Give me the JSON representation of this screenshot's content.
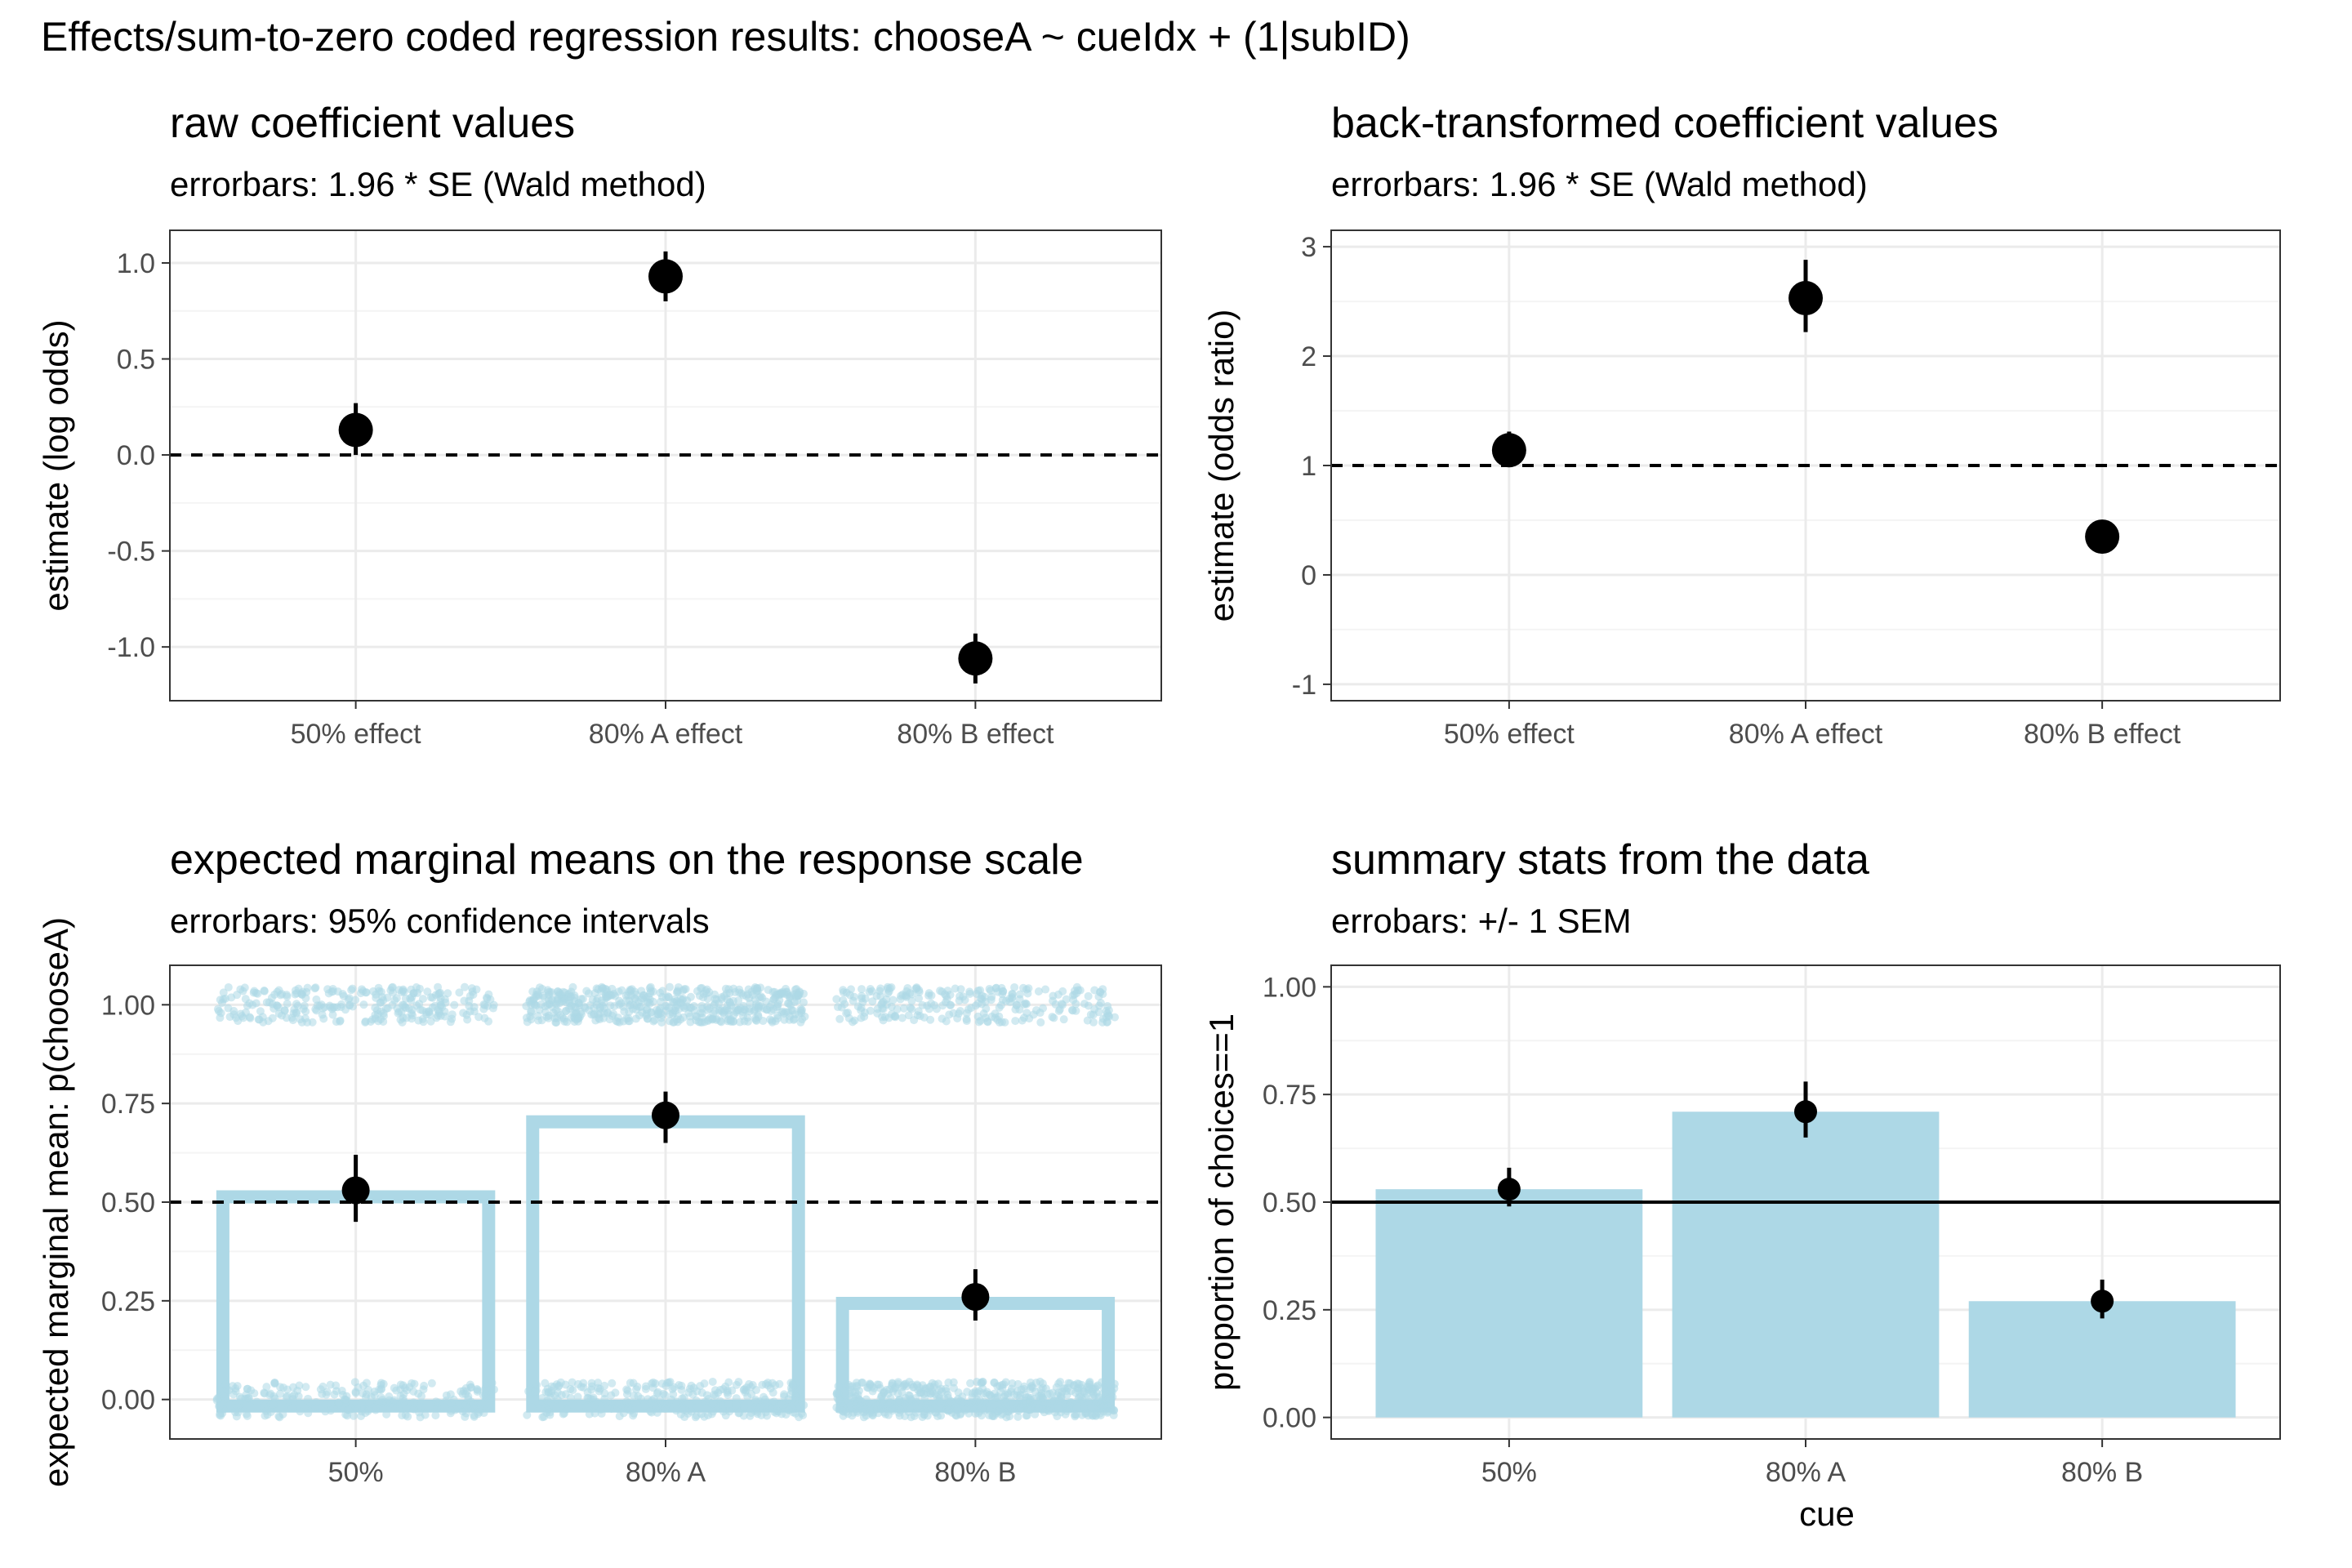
{
  "figure": {
    "title": "Effects/sum-to-zero coded regression results: chooseA ~ cueIdx + (1|subID)"
  },
  "colors": {
    "bar_fill": "#add8e6",
    "point": "#000000",
    "grid_major": "#ebebeb",
    "grid_minor": "#f4f4f4",
    "panel_border": "#333333",
    "tick_text": "#4d4d4d"
  },
  "chart_data": [
    {
      "id": "raw",
      "type": "scatter",
      "title": "raw coefficient values",
      "subtitle": "errorbars: 1.96 * SE (Wald method)",
      "xlabel": "",
      "ylabel": "estimate (log odds)",
      "categories": [
        "50% effect",
        "80% A effect",
        "80% B effect"
      ],
      "values": [
        0.13,
        0.93,
        -1.06
      ],
      "err_low": [
        0.0,
        0.8,
        -1.19
      ],
      "err_high": [
        0.27,
        1.06,
        -0.93
      ],
      "ylim": [
        -1.28,
        1.17
      ],
      "yticks": [
        1.0,
        0.5,
        0.0,
        -0.5,
        -1.0
      ],
      "ytick_labels": [
        "1.0",
        "0.5",
        "0.0",
        "-0.5",
        "-1.0"
      ],
      "ref_line": 0,
      "ref_line_style": "dashed",
      "grid": true
    },
    {
      "id": "back",
      "type": "scatter",
      "title": "back-transformed coefficient values",
      "subtitle": "errorbars: 1.96 * SE (Wald method)",
      "xlabel": "",
      "ylabel": "estimate (odds ratio)",
      "categories": [
        "50% effect",
        "80% A effect",
        "80% B effect"
      ],
      "values": [
        1.14,
        2.53,
        0.35
      ],
      "err_low": [
        1.0,
        2.22,
        0.3
      ],
      "err_high": [
        1.31,
        2.88,
        0.39
      ],
      "ylim": [
        -1.15,
        3.15
      ],
      "yticks": [
        3,
        2,
        1,
        0,
        -1
      ],
      "ytick_labels": [
        "3",
        "2",
        "1",
        "0",
        "-1"
      ],
      "ref_line": 1,
      "ref_line_style": "dashed",
      "grid": true
    },
    {
      "id": "emm",
      "type": "bar",
      "title": "expected marginal means on the response scale",
      "subtitle": "errorbars: 95% confidence intervals",
      "xlabel": "",
      "ylabel": "expected marginal mean: p(chooseA)",
      "categories": [
        "50%",
        "80% A",
        "80% B"
      ],
      "values": [
        0.53,
        0.72,
        0.26
      ],
      "err_low": [
        0.45,
        0.65,
        0.2
      ],
      "err_high": [
        0.62,
        0.78,
        0.33
      ],
      "bar_style": "outline",
      "raw_points": "jittered 0/1 responses",
      "ylim": [
        -0.1,
        1.1
      ],
      "yticks": [
        1.0,
        0.75,
        0.5,
        0.25,
        0.0
      ],
      "ytick_labels": [
        "1.00",
        "0.75",
        "0.50",
        "0.25",
        "0.00"
      ],
      "ref_line": 0.5,
      "ref_line_style": "dashed",
      "grid": true
    },
    {
      "id": "summary",
      "type": "bar",
      "title": "summary stats from the data",
      "subtitle": "errobars: +/- 1 SEM",
      "xlabel": "cue",
      "ylabel": "proportion of choices==1",
      "categories": [
        "50%",
        "80% A",
        "80% B"
      ],
      "values": [
        0.53,
        0.71,
        0.27
      ],
      "points": [
        0.53,
        0.71,
        0.27
      ],
      "err_low": [
        0.49,
        0.65,
        0.23
      ],
      "err_high": [
        0.58,
        0.78,
        0.32
      ],
      "bar_style": "filled",
      "ylim": [
        -0.05,
        1.05
      ],
      "yticks": [
        1.0,
        0.75,
        0.5,
        0.25,
        0.0
      ],
      "ytick_labels": [
        "1.00",
        "0.75",
        "0.50",
        "0.25",
        "0.00"
      ],
      "ref_line": 0.5,
      "ref_line_style": "solid",
      "grid": true
    }
  ]
}
